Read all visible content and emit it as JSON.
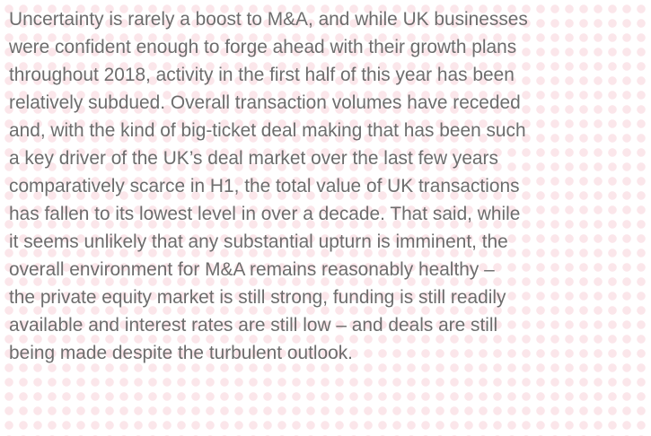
{
  "paragraph": {
    "lines": [
      "Uncertainty is rarely a boost to M&A, and while UK businesses",
      "were confident enough to forge ahead with their growth plans",
      "throughout 2018, activity in the first half of this year has been",
      "relatively subdued. Overall transaction volumes have receded",
      "and, with the kind of big-ticket deal making that has been such",
      "a key driver of the UK’s deal market over the last few years",
      "comparatively scarce in H1, the total value of UK transactions",
      "has fallen to its lowest level in over a decade. That said, while",
      "it seems unlikely that any substantial upturn is imminent, the",
      "overall environment for M&A remains reasonably healthy –",
      "the private equity market is still strong, funding is still readily",
      "available and interest rates are still low – and deals are still",
      "being made despite the turbulent outlook."
    ]
  }
}
